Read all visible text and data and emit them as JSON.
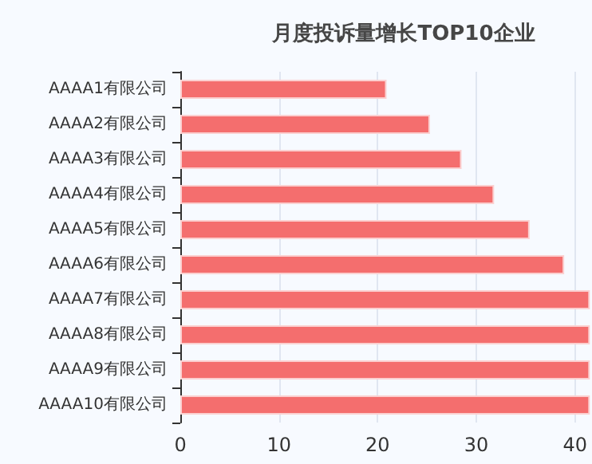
{
  "chart_data": {
    "type": "bar",
    "orientation": "horizontal",
    "title": "月度投诉量增长TOP10企业",
    "categories": [
      "AAAA1有限公司",
      "AAAA2有限公司",
      "AAAA3有限公司",
      "AAAA4有限公司",
      "AAAA5有限公司",
      "AAAA6有限公司",
      "AAAA7有限公司",
      "AAAA8有限公司",
      "AAAA9有限公司",
      "AAAA10有限公司"
    ],
    "values": [
      20.9,
      25.3,
      28.5,
      31.8,
      35.4,
      38.9,
      41.5,
      41.5,
      41.5,
      41.5
    ],
    "color": "#f46e6e",
    "xlim": [
      0,
      41.5
    ],
    "xticks": [
      0,
      10,
      20,
      30,
      40
    ],
    "grid": "x"
  }
}
